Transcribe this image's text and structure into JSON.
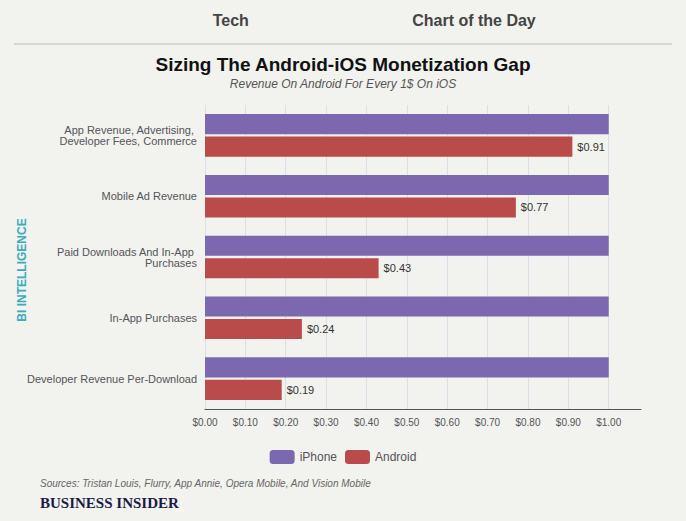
{
  "chart_data": {
    "type": "bar",
    "orientation": "horizontal",
    "title": "Sizing The Android-iOS Monetization Gap",
    "subtitle": "Revenue On Android For Every 1$ On iOS",
    "categories": [
      "App Revenue, Advertising, Developer Fees, Commerce",
      "Mobile Ad Revenue",
      "Paid Downloads And In-App Purchases",
      "In-App Purchases",
      "Developer Revenue Per-Download"
    ],
    "series": [
      {
        "name": "iPhone",
        "color": "#7B68AE",
        "values": [
          1.0,
          1.0,
          1.0,
          1.0,
          1.0
        ]
      },
      {
        "name": "Android",
        "color": "#B94B4B",
        "values": [
          0.91,
          0.77,
          0.43,
          0.24,
          0.19
        ],
        "value_labels": [
          "$0.91",
          "$0.77",
          "$0.43",
          "$0.24",
          "$0.19"
        ]
      }
    ],
    "xlim": [
      0,
      1.08
    ],
    "xticks": [
      {
        "value": 0.0,
        "label": "$0.00"
      },
      {
        "value": 0.1,
        "label": "$0.10"
      },
      {
        "value": 0.2,
        "label": "$0.20"
      },
      {
        "value": 0.3,
        "label": "$0.30"
      },
      {
        "value": 0.4,
        "label": "$0.40"
      },
      {
        "value": 0.5,
        "label": "$0.50"
      },
      {
        "value": 0.6,
        "label": "$0.60"
      },
      {
        "value": 0.7,
        "label": "$0.70"
      },
      {
        "value": 0.8,
        "label": "$0.80"
      },
      {
        "value": 0.9,
        "label": "$0.90"
      },
      {
        "value": 1.0,
        "label": "$1.00"
      }
    ],
    "grid": true,
    "legend": "bottom",
    "annotations": [
      "Tech",
      "Chart of the Day",
      "BI INTELLIGENCE",
      "Sources: Tristan Louis, Flurry, App Annie, Opera Mobile, And Vision Mobile",
      "BUSINESS INSIDER"
    ]
  }
}
